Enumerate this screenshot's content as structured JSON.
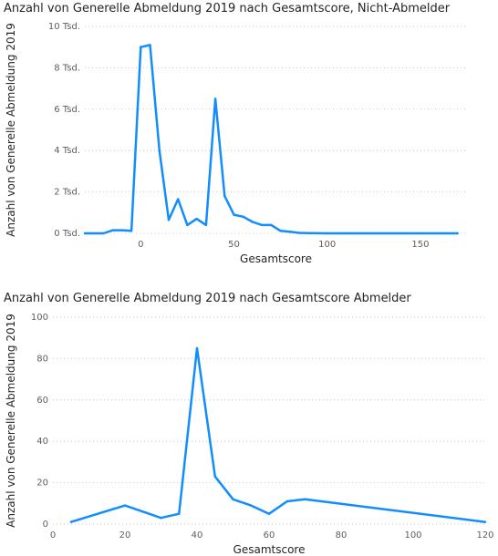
{
  "chart_data": [
    {
      "type": "line",
      "title": "Anzahl von Generelle Abmeldung 2019 nach Gesamtscore, Nicht-Abmelder",
      "xlabel": "Gesamtscore",
      "ylabel": "Anzahl von Generelle Abmeldung 2019",
      "x_ticks": [
        "0",
        "50",
        "100",
        "150"
      ],
      "y_ticks": [
        "0 Tsd.",
        "2 Tsd.",
        "4 Tsd.",
        "6 Tsd.",
        "8 Tsd.",
        "10 Tsd."
      ],
      "xlim": [
        -30,
        175
      ],
      "ylim": [
        0,
        10000
      ],
      "grid": "horizontal dotted",
      "color": "#118DFF",
      "x": [
        -30,
        -20,
        -15,
        -10,
        -5,
        0,
        5,
        10,
        15,
        20,
        25,
        30,
        35,
        40,
        45,
        50,
        55,
        60,
        65,
        70,
        75,
        80,
        85,
        90,
        95,
        100,
        110,
        120,
        130,
        140,
        150,
        160,
        170
      ],
      "values": [
        0,
        0,
        150,
        150,
        120,
        9000,
        9100,
        4000,
        650,
        1650,
        400,
        700,
        400,
        6500,
        1800,
        900,
        800,
        550,
        400,
        400,
        120,
        80,
        20,
        10,
        5,
        0,
        0,
        0,
        0,
        0,
        0,
        0,
        0
      ]
    },
    {
      "type": "line",
      "title": "Anzahl von Generelle Abmeldung 2019 nach Gesamtscore Abmelder",
      "xlabel": "Gesamtscore",
      "ylabel": "Anzahl von Generelle Abmeldung 2019",
      "x_ticks": [
        "0",
        "20",
        "40",
        "60",
        "80",
        "100",
        "120"
      ],
      "y_ticks": [
        "0",
        "20",
        "40",
        "60",
        "80",
        "100"
      ],
      "xlim": [
        0,
        120
      ],
      "ylim": [
        0,
        100
      ],
      "grid": "horizontal dotted",
      "color": "#118DFF",
      "x": [
        5,
        20,
        30,
        35,
        40,
        45,
        50,
        55,
        60,
        65,
        70,
        120
      ],
      "values": [
        1,
        9,
        3,
        5,
        85,
        23,
        12,
        9,
        5,
        11,
        12,
        1
      ]
    }
  ]
}
